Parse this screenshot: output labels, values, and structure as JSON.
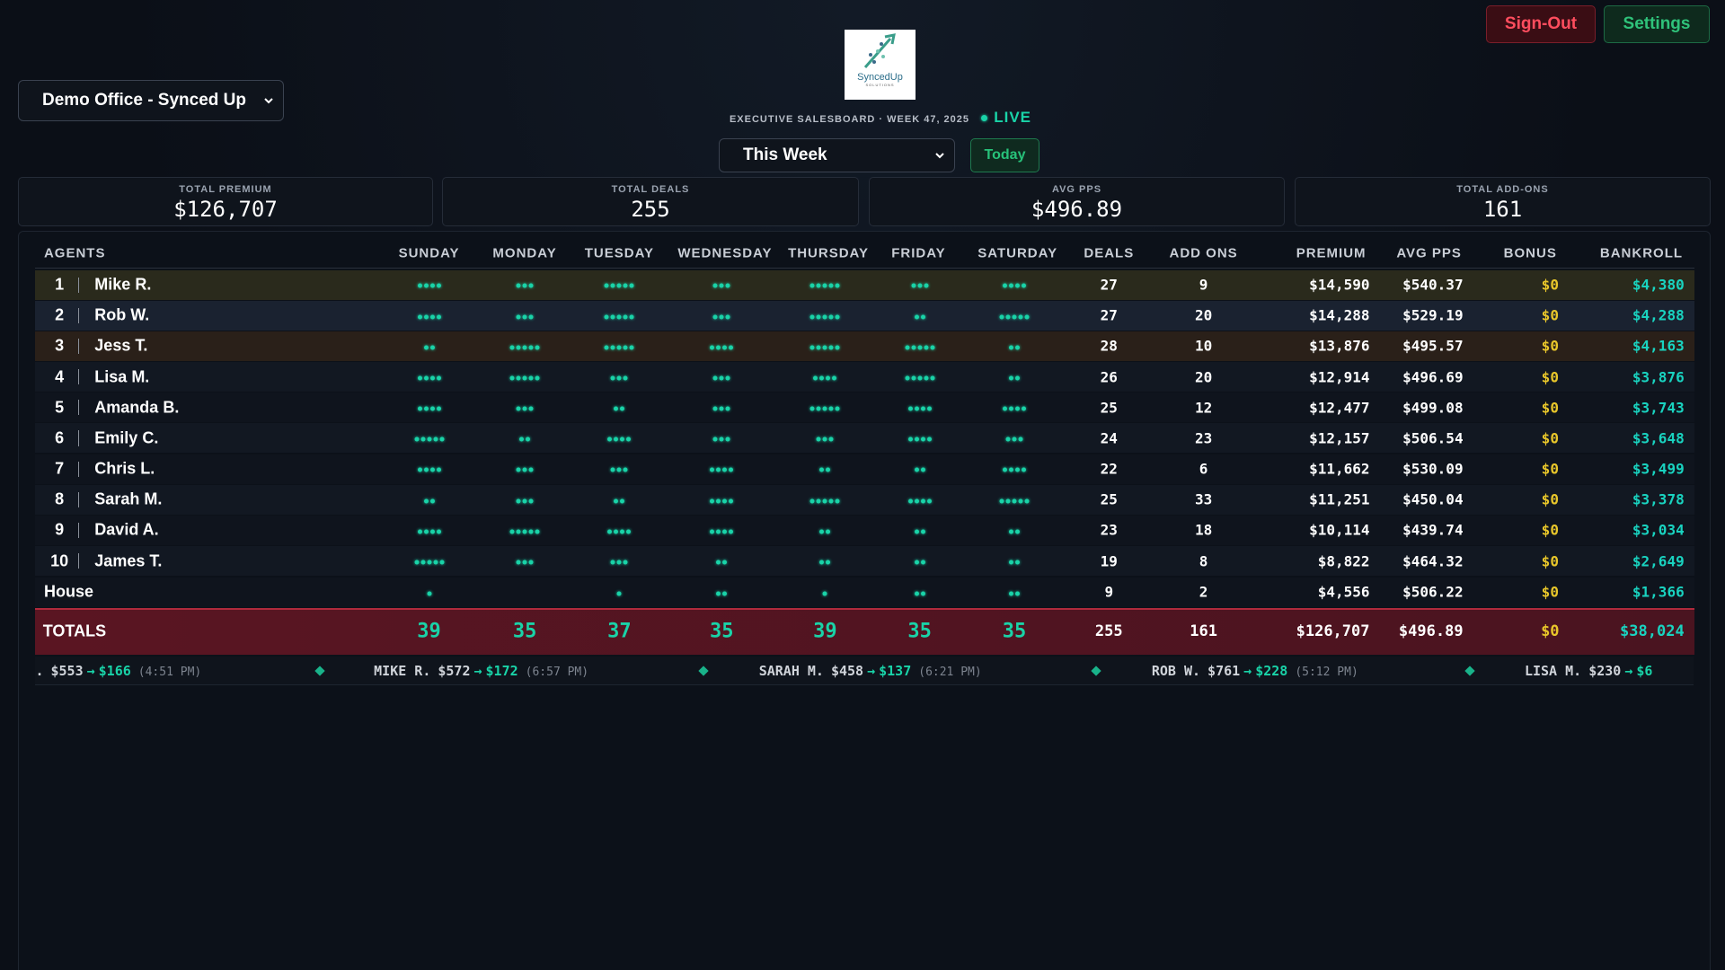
{
  "header": {
    "office": "Demo Office - Synced Up",
    "logo": {
      "name": "SyncedUp",
      "tagline": "SOLUTIONS"
    },
    "subtitle": "EXECUTIVE SALESBOARD · WEEK 47, 2025",
    "live": "LIVE",
    "period": "This Week",
    "today": "Today",
    "sign_out": "Sign-Out",
    "settings": "Settings"
  },
  "stats": [
    {
      "label": "TOTAL PREMIUM",
      "value": "$126,707"
    },
    {
      "label": "TOTAL DEALS",
      "value": "255"
    },
    {
      "label": "AVG PPS",
      "value": "$496.89"
    },
    {
      "label": "TOTAL ADD-ONS",
      "value": "161"
    }
  ],
  "table": {
    "columns": [
      "AGENTS",
      "SUNDAY",
      "MONDAY",
      "TUESDAY",
      "WEDNESDAY",
      "THURSDAY",
      "FRIDAY",
      "SATURDAY",
      "DEALS",
      "ADD ONS",
      "PREMIUM",
      "AVG PPS",
      "BONUS",
      "BANKROLL"
    ],
    "rows": [
      {
        "rank": 1,
        "agent": "Mike R.",
        "days": [
          4,
          3,
          5,
          3,
          5,
          3,
          4
        ],
        "deals": 27,
        "add_ons": 9,
        "premium": "$14,590",
        "avg_pps": "$540.37",
        "bonus": "$0",
        "bankroll": "$4,380"
      },
      {
        "rank": 2,
        "agent": "Rob W.",
        "days": [
          4,
          3,
          5,
          3,
          5,
          2,
          5
        ],
        "deals": 27,
        "add_ons": 20,
        "premium": "$14,288",
        "avg_pps": "$529.19",
        "bonus": "$0",
        "bankroll": "$4,288"
      },
      {
        "rank": 3,
        "agent": "Jess T.",
        "days": [
          2,
          5,
          5,
          4,
          5,
          5,
          2
        ],
        "deals": 28,
        "add_ons": 10,
        "premium": "$13,876",
        "avg_pps": "$495.57",
        "bonus": "$0",
        "bankroll": "$4,163"
      },
      {
        "rank": 4,
        "agent": "Lisa M.",
        "days": [
          4,
          5,
          3,
          3,
          4,
          5,
          2
        ],
        "deals": 26,
        "add_ons": 20,
        "premium": "$12,914",
        "avg_pps": "$496.69",
        "bonus": "$0",
        "bankroll": "$3,876"
      },
      {
        "rank": 5,
        "agent": "Amanda B.",
        "days": [
          4,
          3,
          2,
          3,
          5,
          4,
          4
        ],
        "deals": 25,
        "add_ons": 12,
        "premium": "$12,477",
        "avg_pps": "$499.08",
        "bonus": "$0",
        "bankroll": "$3,743"
      },
      {
        "rank": 6,
        "agent": "Emily C.",
        "days": [
          5,
          2,
          4,
          3,
          3,
          4,
          3
        ],
        "deals": 24,
        "add_ons": 23,
        "premium": "$12,157",
        "avg_pps": "$506.54",
        "bonus": "$0",
        "bankroll": "$3,648"
      },
      {
        "rank": 7,
        "agent": "Chris L.",
        "days": [
          4,
          3,
          3,
          4,
          2,
          2,
          4
        ],
        "deals": 22,
        "add_ons": 6,
        "premium": "$11,662",
        "avg_pps": "$530.09",
        "bonus": "$0",
        "bankroll": "$3,499"
      },
      {
        "rank": 8,
        "agent": "Sarah M.",
        "days": [
          2,
          3,
          2,
          4,
          5,
          4,
          5
        ],
        "deals": 25,
        "add_ons": 33,
        "premium": "$11,251",
        "avg_pps": "$450.04",
        "bonus": "$0",
        "bankroll": "$3,378"
      },
      {
        "rank": 9,
        "agent": "David A.",
        "days": [
          4,
          5,
          4,
          4,
          2,
          2,
          2
        ],
        "deals": 23,
        "add_ons": 18,
        "premium": "$10,114",
        "avg_pps": "$439.74",
        "bonus": "$0",
        "bankroll": "$3,034"
      },
      {
        "rank": 10,
        "agent": "James T.",
        "days": [
          5,
          3,
          3,
          2,
          2,
          2,
          2
        ],
        "deals": 19,
        "add_ons": 8,
        "premium": "$8,822",
        "avg_pps": "$464.32",
        "bonus": "$0",
        "bankroll": "$2,649"
      }
    ],
    "house": {
      "agent": "House",
      "days": [
        1,
        0,
        1,
        2,
        1,
        2,
        2
      ],
      "deals": 9,
      "add_ons": 2,
      "premium": "$4,556",
      "avg_pps": "$506.22",
      "bonus": "$0",
      "bankroll": "$1,366"
    },
    "totals": {
      "label": "TOTALS",
      "days": [
        39,
        35,
        37,
        35,
        39,
        35,
        35
      ],
      "deals": 255,
      "add_ons": 161,
      "premium": "$126,707",
      "avg_pps": "$496.89",
      "bonus": "$0",
      "bankroll": "$38,024"
    }
  },
  "ticker": {
    "arrow": "→",
    "items": [
      {
        "name": "C.",
        "from": "$553",
        "to": "$166",
        "time": "(4:51 PM)"
      },
      {
        "name": "MIKE R.",
        "from": "$572",
        "to": "$172",
        "time": "(6:57 PM)"
      },
      {
        "name": "SARAH M.",
        "from": "$458",
        "to": "$137",
        "time": "(6:21 PM)"
      },
      {
        "name": "ROB W.",
        "from": "$761",
        "to": "$228",
        "time": "(5:12 PM)"
      },
      {
        "name": "LISA M.",
        "from": "$230",
        "to": "$6"
      }
    ]
  }
}
